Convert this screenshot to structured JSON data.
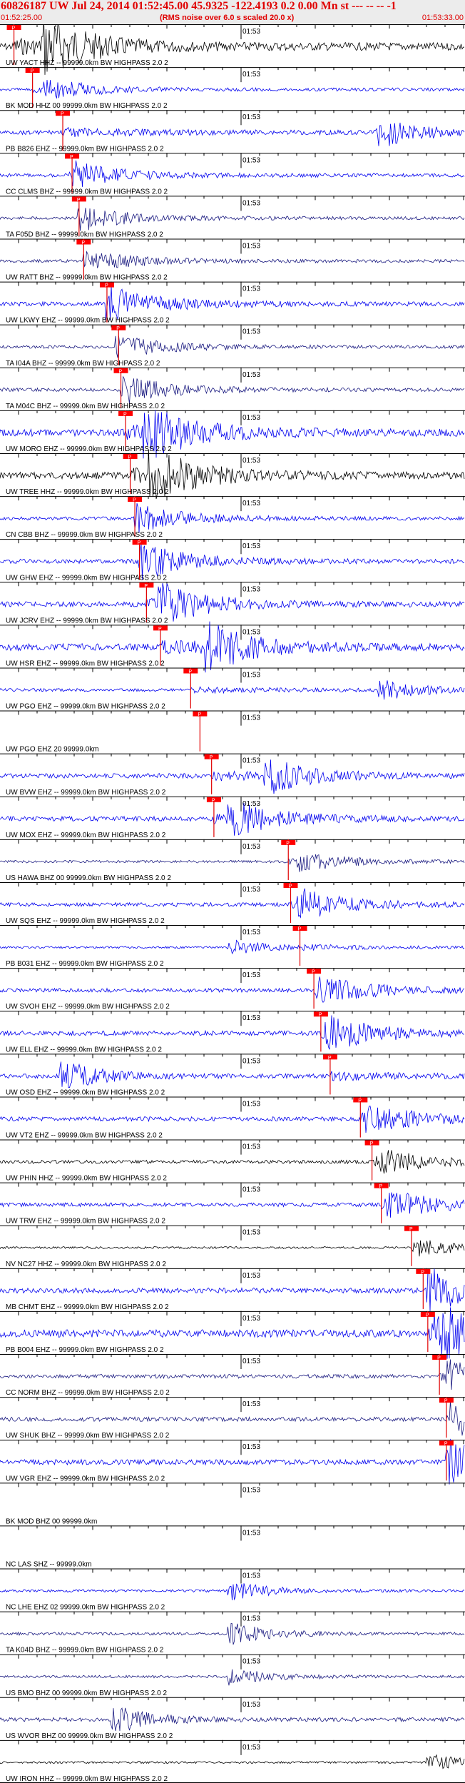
{
  "header": {
    "title": "60826187 UW Jul 24, 2014 01:52:45.00   45.9325 -122.4193  0.2 0.00 Mn st --- -- --  -1",
    "start_time": "01:52:25.00",
    "note": "(RMS noise over 6.0 s scaled 20.0 x)",
    "end_time": "01:53:33.00"
  },
  "chart_data": {
    "type": "line",
    "title": "60826187 UW Jul 24, 2014 01:52:45.00   45.9325 -122.4193  0.2 0.00 Mn st --- -- --  -1",
    "time_range": [
      "01:52:25.00",
      "01:53:33.00"
    ],
    "minute_tick_label": "01:53",
    "pick_label": "P",
    "colors": {
      "blue": "#0000ee",
      "black": "#000000",
      "navy": "#1a1a80",
      "red": "#e00000",
      "pick_box": "#ff0000"
    },
    "traces": [
      {
        "label": "UW YACT HHZ -- 99999.0km BW  HIGHPASS  2.0  2",
        "color": "black",
        "pick": 0.03,
        "amp": 0.9,
        "burst": 0.1
      },
      {
        "label": "BK MOD HHZ 00 99999.0km BW  HIGHPASS  2.0  2",
        "color": "blue",
        "pick": 0.07,
        "amp": 0.35,
        "burst": 0.1
      },
      {
        "label": "PB B826 EHZ -- 99999.0km BW  HIGHPASS  2.0  2",
        "color": "blue",
        "pick": 0.135,
        "amp": 0.5,
        "burst": 0.82
      },
      {
        "label": "CC CLMS BHZ -- 99999.0km BW  HIGHPASS  2.0  2",
        "color": "blue",
        "pick": 0.155,
        "amp": 0.4,
        "burst": 0.16
      },
      {
        "label": "TA F05D BHZ -- 99999.0km BW  HIGHPASS  2.0  2",
        "color": "navy",
        "pick": 0.17,
        "amp": 0.35,
        "burst": 0.18
      },
      {
        "label": "UW RATT BHZ -- 99999.0km BW  HIGHPASS  2.0  2",
        "color": "navy",
        "pick": 0.18,
        "amp": 0.35,
        "burst": 0.19
      },
      {
        "label": "UW LKWY EHZ -- 99999.0km BW  HIGHPASS  2.0  2",
        "color": "blue",
        "pick": 0.23,
        "amp": 0.5,
        "burst": 0.24
      },
      {
        "label": "TA I04A BHZ -- 99999.0km BW  HIGHPASS  2.0  2",
        "color": "navy",
        "pick": 0.255,
        "amp": 0.35,
        "burst": 0.26
      },
      {
        "label": "TA M04C BHZ -- 99999.0km BW  HIGHPASS  2.0  2",
        "color": "navy",
        "pick": 0.26,
        "amp": 0.4,
        "burst": 0.27
      },
      {
        "label": "UW MORO EHZ -- 99999.0km BW  HIGHPASS  2.0  2",
        "color": "blue",
        "pick": 0.27,
        "amp": 0.85,
        "burst": 0.32
      },
      {
        "label": "UW TREE HHZ -- 99999.0km BW  HIGHPASS  2.0  2",
        "color": "black",
        "pick": 0.28,
        "amp": 0.8,
        "burst": 0.33
      },
      {
        "label": "CN CBB BHZ -- 99999.0km BW  HIGHPASS  2.0  2",
        "color": "blue",
        "pick": 0.29,
        "amp": 0.4,
        "burst": 0.3
      },
      {
        "label": "UW GHW EHZ -- 99999.0km BW  HIGHPASS  2.0  2",
        "color": "blue",
        "pick": 0.3,
        "amp": 0.5,
        "burst": 0.31
      },
      {
        "label": "UW JCRV EHZ -- 99999.0km BW  HIGHPASS  2.0  2",
        "color": "blue",
        "pick": 0.315,
        "amp": 0.6,
        "burst": 0.35
      },
      {
        "label": "UW HSR EHZ -- 99999.0km BW  HIGHPASS  2.0  2",
        "color": "blue",
        "pick": 0.345,
        "amp": 0.8,
        "burst": 0.45
      },
      {
        "label": "UW PGO EHZ -- 99999.0km BW  HIGHPASS  2.0  2",
        "color": "blue",
        "pick": 0.41,
        "amp": 0.35,
        "burst": 0.82
      },
      {
        "label": "UW PGO EHZ 20 99999.0km",
        "color": "blue",
        "pick": 0.43,
        "amp": 0.0,
        "burst": 0.5
      },
      {
        "label": "UW BVW EHZ -- 99999.0km BW  HIGHPASS  2.0  2",
        "color": "blue",
        "pick": 0.455,
        "amp": 0.55,
        "burst": 0.58
      },
      {
        "label": "UW MOX EHZ -- 99999.0km BW  HIGHPASS  2.0  2",
        "color": "blue",
        "pick": 0.46,
        "amp": 0.55,
        "burst": 0.5
      },
      {
        "label": "US HAWA BHZ 00 99999.0km BW  HIGHPASS  2.0  2",
        "color": "navy",
        "pick": 0.62,
        "amp": 0.3,
        "burst": 0.65
      },
      {
        "label": "UW SQS EHZ -- 99999.0km BW  HIGHPASS  2.0  2",
        "color": "blue",
        "pick": 0.625,
        "amp": 0.45,
        "burst": 0.65
      },
      {
        "label": "PB B031 EHZ -- 99999.0km BW  HIGHPASS  2.0  2",
        "color": "blue",
        "pick": 0.645,
        "amp": 0.25,
        "burst": 0.5
      },
      {
        "label": "UW SVOH EHZ -- 99999.0km BW  HIGHPASS  2.0  2",
        "color": "blue",
        "pick": 0.675,
        "amp": 0.45,
        "burst": 0.69
      },
      {
        "label": "UW ELL EHZ -- 99999.0km BW  HIGHPASS  2.0  2",
        "color": "blue",
        "pick": 0.69,
        "amp": 0.55,
        "burst": 0.71
      },
      {
        "label": "UW OSD EHZ -- 99999.0km BW  HIGHPASS  2.0  2",
        "color": "blue",
        "pick": 0.71,
        "amp": 0.5,
        "burst": 0.14
      },
      {
        "label": "UW VT2 EHZ -- 99999.0km BW  HIGHPASS  2.0  2",
        "color": "blue",
        "pick": 0.775,
        "amp": 0.5,
        "burst": 0.79
      },
      {
        "label": "UW PHIN HHZ -- 99999.0km BW  HIGHPASS  2.0  2",
        "color": "black",
        "pick": 0.8,
        "amp": 0.4,
        "burst": 0.82
      },
      {
        "label": "UW TRW EHZ -- 99999.0km BW  HIGHPASS  2.0  2",
        "color": "blue",
        "pick": 0.82,
        "amp": 0.45,
        "burst": 0.84
      },
      {
        "label": "NV NC27 HHZ -- 99999.0km BW  HIGHPASS  2.0  2",
        "color": "black",
        "pick": 0.885,
        "amp": 0.25,
        "burst": 0.9
      },
      {
        "label": "MB CHMT EHZ -- 99999.0km BW  HIGHPASS  2.0  2",
        "color": "blue",
        "pick": 0.91,
        "amp": 0.6,
        "burst": 0.93
      },
      {
        "label": "PB B004 EHZ -- 99999.0km BW  HIGHPASS  2.0  2",
        "color": "blue",
        "pick": 0.92,
        "amp": 0.9,
        "burst": 0.94
      },
      {
        "label": "CC NORM BHZ -- 99999.0km BW  HIGHPASS  2.0  2",
        "color": "navy",
        "pick": 0.945,
        "amp": 0.45,
        "burst": 0.97
      },
      {
        "label": "UW SHUK BHZ -- 99999.0km BW  HIGHPASS  2.0  2",
        "color": "navy",
        "pick": 0.96,
        "amp": 0.5,
        "burst": 0.98
      },
      {
        "label": "UW VGR EHZ -- 99999.0km BW  HIGHPASS  2.0  2",
        "color": "blue",
        "pick": 0.96,
        "amp": 0.6,
        "burst": 0.97
      },
      {
        "label": "BK MOD BHZ 00 99999.0km",
        "color": "blue",
        "pick": null,
        "amp": 0.0,
        "burst": 0.5
      },
      {
        "label": "NC LAS SHZ -- 99999.0km",
        "color": "blue",
        "pick": null,
        "amp": 0.0,
        "burst": 0.5
      },
      {
        "label": "NC LHE EHZ 02 99999.0km BW  HIGHPASS  2.0  2",
        "color": "blue",
        "pick": null,
        "amp": 0.3,
        "burst": 0.5
      },
      {
        "label": "TA K04D BHZ -- 99999.0km BW  HIGHPASS  2.0  2",
        "color": "navy",
        "pick": null,
        "amp": 0.35,
        "burst": 0.5
      },
      {
        "label": "US BMO BHZ 00 99999.0km BW  HIGHPASS  2.0  2",
        "color": "navy",
        "pick": null,
        "amp": 0.3,
        "burst": 0.5
      },
      {
        "label": "US WVOR BHZ 00 99999.0km BW  HIGHPASS  2.0  2",
        "color": "navy",
        "pick": null,
        "amp": 0.45,
        "burst": 0.25
      },
      {
        "label": "UW IRON HHZ -- 99999.0km BW  HIGHPASS  2.0  2",
        "color": "black",
        "pick": null,
        "amp": 0.25,
        "burst": 0.93
      }
    ]
  }
}
